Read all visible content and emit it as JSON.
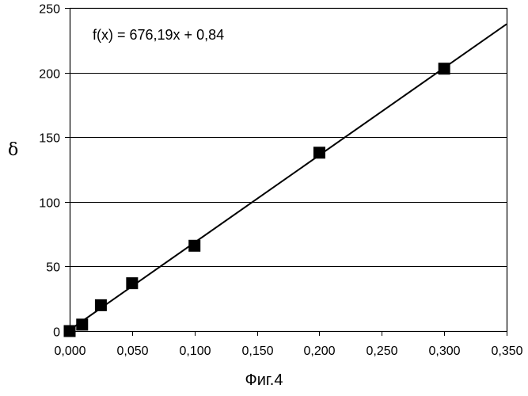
{
  "figure": {
    "caption": "Фиг.4"
  },
  "chart_data": {
    "type": "scatter",
    "title": "",
    "xlabel": "",
    "ylabel": "δ",
    "xlim": [
      0,
      0.35
    ],
    "ylim": [
      0,
      250
    ],
    "x_ticks": [
      0.0,
      0.05,
      0.1,
      0.15,
      0.2,
      0.25,
      0.3,
      0.35
    ],
    "x_tick_labels": [
      "0,000",
      "0,050",
      "0,100",
      "0,150",
      "0,200",
      "0,250",
      "0,300",
      "0,350"
    ],
    "y_ticks": [
      0,
      50,
      100,
      150,
      200,
      250
    ],
    "y_tick_labels": [
      "0",
      "50",
      "100",
      "150",
      "200",
      "250"
    ],
    "grid": "horizontal",
    "series": [
      {
        "marker": "square",
        "color": "#000000",
        "x": [
          0.0,
          0.01,
          0.025,
          0.05,
          0.1,
          0.2,
          0.3
        ],
        "y": [
          0,
          5,
          20,
          37,
          66,
          138,
          203
        ]
      }
    ],
    "trendline": {
      "slope": 676.19,
      "intercept": 0.84,
      "color": "#000000",
      "equation_label": "f(x) = 676,19x + 0,84"
    }
  }
}
